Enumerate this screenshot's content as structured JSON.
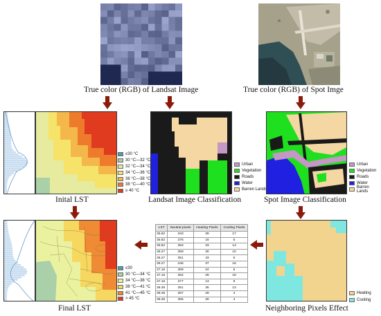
{
  "captions": {
    "landsat_rgb": "True color (RGB) of Landsat Image",
    "spot_rgb": "True color (RGB) of Spot Imge",
    "initial_lst": "Inital LST",
    "landsat_class": "Landsat Image Classification",
    "spot_class": "Spot Image Classification",
    "final_lst": "Final LST",
    "neighbor_effect": "Neighboring Pixels Effect"
  },
  "lst_legend_initial": [
    {
      "label": "≤30 °C",
      "color": "#4a9fb7"
    },
    {
      "label": "30 °C—32 °C",
      "color": "#a9d0a8"
    },
    {
      "label": "32 °C—34 °C",
      "color": "#e6eb9f"
    },
    {
      "label": "34 °C—36 °C",
      "color": "#f6e36a"
    },
    {
      "label": "36 °C—38 °C",
      "color": "#f4b84a"
    },
    {
      "label": "38 °C—40 °C",
      "color": "#ee7a2c"
    },
    {
      "label": "≥ 40 °C",
      "color": "#e03a1f"
    }
  ],
  "lst_legend_final": [
    {
      "label": "≤30",
      "color": "#4a9fb7"
    },
    {
      "label": "30 °C—34 °C",
      "color": "#a9d0a8"
    },
    {
      "label": "34 °C—38 °C",
      "color": "#eaf2a0"
    },
    {
      "label": "38 °C—41 °C",
      "color": "#f6d860"
    },
    {
      "label": "41 °C—45 °C",
      "color": "#ef8a35"
    },
    {
      "label": "> 45 °C",
      "color": "#e03a1f"
    }
  ],
  "class_legend": [
    {
      "label": "Urban",
      "color": "#c497c4"
    },
    {
      "label": "Vegetation",
      "color": "#1fe01f"
    },
    {
      "label": "Roads",
      "color": "#1a1a1a"
    },
    {
      "label": "Water",
      "color": "#2020e0"
    },
    {
      "label": "Barren Lands",
      "color": "#f5d7a3"
    }
  ],
  "neighbor_legend": [
    {
      "label": "Heating",
      "color": "#f2d48e"
    },
    {
      "label": "Cooling",
      "color": "#7ee8e0"
    }
  ],
  "table": {
    "headers": [
      "LST",
      "Neutral pixels",
      "Heating Pixels",
      "Cooling Pixels"
    ],
    "rows": [
      [
        "35.82",
        "343",
        "39",
        "17"
      ],
      [
        "35.82",
        "376",
        "18",
        "5"
      ],
      [
        "35.82",
        "353",
        "33",
        "13"
      ],
      [
        "36.27",
        "359",
        "30",
        "10"
      ],
      [
        "36.27",
        "351",
        "43",
        "5"
      ],
      [
        "36.27",
        "346",
        "37",
        "16"
      ],
      [
        "37.16",
        "369",
        "24",
        "6"
      ],
      [
        "37.16",
        "352",
        "29",
        "18"
      ],
      [
        "37.16",
        "377",
        "13",
        "9"
      ],
      [
        "38.36",
        "351",
        "35",
        "13"
      ],
      [
        "38.36",
        "367",
        "29",
        "3"
      ],
      [
        "38.36",
        "365",
        "30",
        "4"
      ]
    ]
  },
  "colors": {
    "arrow": "#8b1a0a",
    "panel_border": "#333333"
  }
}
